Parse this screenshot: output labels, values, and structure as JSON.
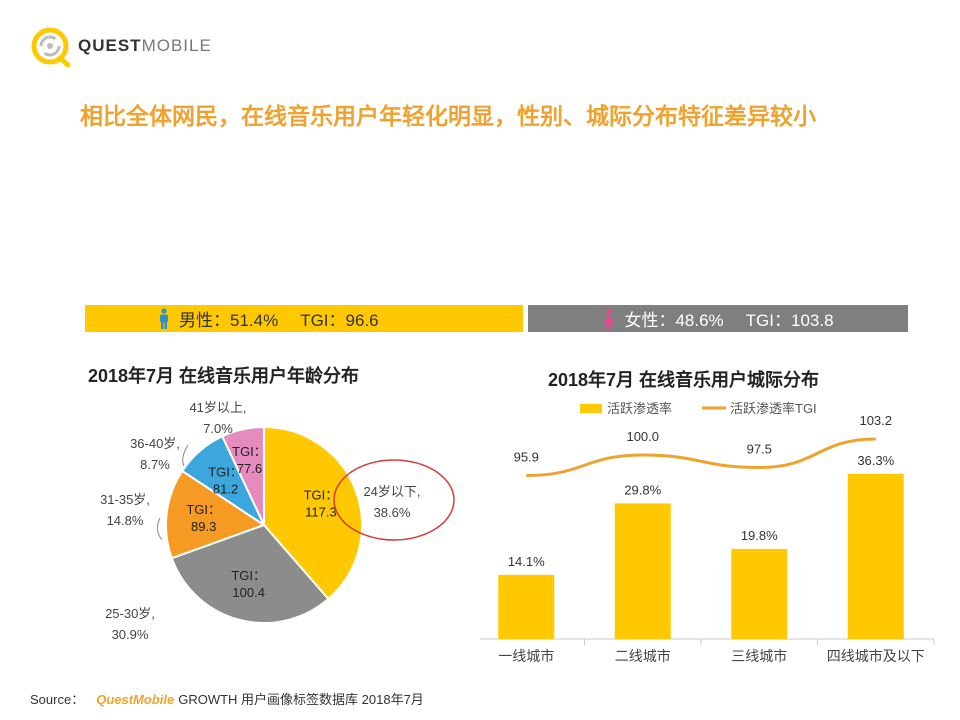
{
  "logo": {
    "brand_bold": "QUEST",
    "brand_light": "MOBILE"
  },
  "headline": "相比全体网民，在线音乐用户年轻化明显，性别、城际分布特征差异较小",
  "gender": {
    "male": {
      "label": "男性：51.4%",
      "tgi": "TGI：96.6",
      "color": "#FFC800",
      "icon": "male-icon"
    },
    "female": {
      "label": "女性：48.6%",
      "tgi": "TGI：103.8",
      "color": "#7F7F7F",
      "icon": "female-icon"
    }
  },
  "chart_data": [
    {
      "type": "pie",
      "title": "2018年7月 在线音乐用户年龄分布",
      "slices": [
        {
          "category": "24岁以下,",
          "value": 38.6,
          "value_label": "38.6%",
          "tgi_label": "TGI：",
          "tgi": "117.3",
          "color": "#FFC800",
          "highlighted": true
        },
        {
          "category": "25-30岁,",
          "value": 30.9,
          "value_label": "30.9%",
          "tgi_label": "TGI：",
          "tgi": "100.4",
          "color": "#8C8C8C"
        },
        {
          "category": "31-35岁,",
          "value": 14.8,
          "value_label": "14.8%",
          "tgi_label": "TGI：",
          "tgi": "89.3",
          "color": "#F59A23"
        },
        {
          "category": "36-40岁,",
          "value": 8.7,
          "value_label": "8.7%",
          "tgi_label": "TGI：",
          "tgi": "81.2",
          "color": "#3BA7DD"
        },
        {
          "category": "41岁以上,",
          "value": 7.0,
          "value_label": "7.0%",
          "tgi_label": "TGI：",
          "tgi": "77.6",
          "color": "#E58BBE"
        }
      ]
    },
    {
      "type": "bar",
      "title": "2018年7月 在线音乐用户城际分布",
      "categories": [
        "一线城市",
        "二线城市",
        "三线城市",
        "四线城市及以下"
      ],
      "series": [
        {
          "name": "活跃渗透率",
          "type": "bar",
          "values": [
            14.1,
            29.8,
            19.8,
            36.3
          ],
          "labels": [
            "14.1%",
            "29.8%",
            "19.8%",
            "36.3%"
          ],
          "color": "#FFC800"
        },
        {
          "name": "活跃渗透率TGI",
          "type": "line",
          "values": [
            95.9,
            100.0,
            97.5,
            103.2
          ],
          "labels": [
            "95.9",
            "100.0",
            "97.5",
            "103.2"
          ],
          "color": "#F0A22E"
        }
      ],
      "legend_position": "top",
      "grid": false
    }
  ],
  "source": {
    "prefix": "Source：",
    "brand": "QuestMobile",
    "text": "GROWTH 用户画像标签数据库 2018年7月"
  }
}
